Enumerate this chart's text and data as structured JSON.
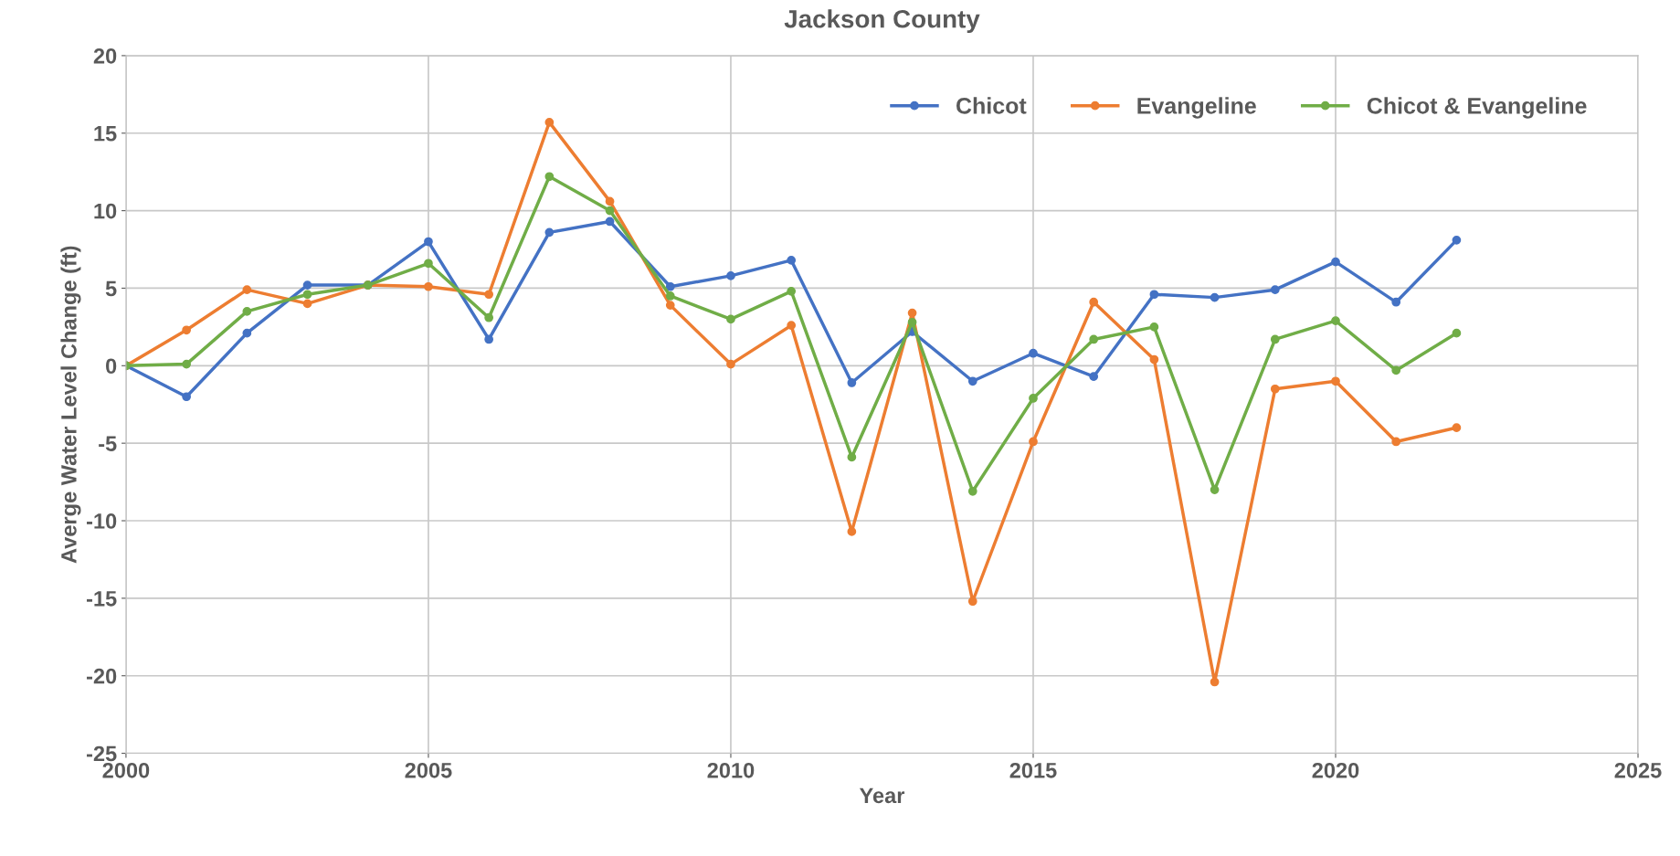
{
  "chart_data": {
    "type": "line",
    "title": "Jackson County",
    "xlabel": "Year",
    "ylabel": "Averge Water Level Change (ft)",
    "x": [
      2000,
      2001,
      2002,
      2003,
      2004,
      2005,
      2006,
      2007,
      2008,
      2009,
      2010,
      2011,
      2012,
      2013,
      2014,
      2015,
      2016,
      2017,
      2018,
      2019,
      2020,
      2021,
      2022
    ],
    "series": [
      {
        "name": "Chicot",
        "color": "#4472c4",
        "values": [
          0,
          -2.0,
          2.1,
          5.2,
          5.2,
          8.0,
          1.7,
          8.6,
          9.3,
          5.1,
          5.8,
          6.8,
          -1.1,
          2.2,
          -1.0,
          0.8,
          -0.7,
          4.6,
          4.4,
          4.9,
          6.7,
          4.1,
          8.1
        ]
      },
      {
        "name": "Evangeline",
        "color": "#ed7d31",
        "values": [
          0,
          2.3,
          4.9,
          4.0,
          5.2,
          5.1,
          4.6,
          15.7,
          10.6,
          3.9,
          0.1,
          2.6,
          -10.7,
          3.4,
          -15.2,
          -4.9,
          4.1,
          0.4,
          -20.4,
          -1.5,
          -1.0,
          -4.9,
          -4.0
        ]
      },
      {
        "name": "Chicot & Evangeline",
        "color": "#70ad47",
        "values": [
          0,
          0.1,
          3.5,
          4.6,
          5.2,
          6.6,
          3.1,
          12.2,
          10.0,
          4.5,
          3.0,
          4.8,
          -5.9,
          2.8,
          -8.1,
          -2.1,
          1.7,
          2.5,
          -8.0,
          1.7,
          2.9,
          -0.3,
          2.1
        ]
      }
    ],
    "xlim": [
      2000,
      2025
    ],
    "xticks": [
      2000,
      2005,
      2010,
      2015,
      2020,
      2025
    ],
    "ylim": [
      -25,
      20
    ],
    "yticks": [
      -25,
      -20,
      -15,
      -10,
      -5,
      0,
      5,
      10,
      15,
      20
    ],
    "grid": true,
    "legend": "top right",
    "marker": "circle",
    "line_style": "solid"
  }
}
